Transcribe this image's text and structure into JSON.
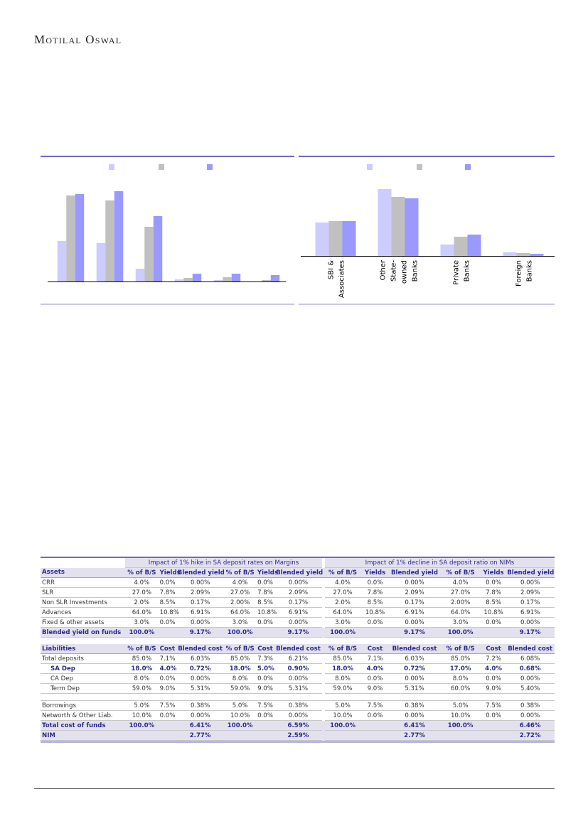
{
  "header": {
    "logo": "Motilal Oswal"
  },
  "chart_data": [
    {
      "type": "bar",
      "categories": [
        "",
        "",
        "",
        "",
        "",
        ""
      ],
      "series": [
        {
          "color": "#ccccff",
          "values": [
            57,
            54,
            18,
            3,
            2,
            0
          ]
        },
        {
          "color": "#c0c0c0",
          "values": [
            121,
            114,
            77,
            5,
            6,
            2
          ]
        },
        {
          "color": "#9999ff",
          "values": [
            123,
            127,
            92,
            11,
            11,
            9
          ]
        }
      ],
      "legend": "top",
      "grid": false
    },
    {
      "type": "bar",
      "categories": [
        "SBI & Associates",
        "Other State-owned Banks",
        "Private Banks",
        "Foreign Banks"
      ],
      "category_lines": [
        [
          "SBI &",
          "Associates"
        ],
        [
          "Other",
          "State-",
          "owned",
          "Banks"
        ],
        [
          "Private",
          "Banks"
        ],
        [
          "Foreign",
          "Banks"
        ]
      ],
      "series": [
        {
          "color": "#ccccff",
          "values": [
            47,
            94,
            16,
            5
          ]
        },
        {
          "color": "#c0c0c0",
          "values": [
            49,
            83,
            27,
            4
          ]
        },
        {
          "color": "#9999ff",
          "values": [
            49,
            81,
            30,
            3
          ]
        }
      ],
      "legend": "top",
      "grid": false
    }
  ],
  "table": {
    "titles": [
      "Impact of 1% hike in SA deposit rates on Margins",
      "Impact of 1% decline in SA deposit ratio on NIMs"
    ],
    "assets_header": [
      "Assets",
      "% of B/S",
      "Yields",
      "Blended yield",
      "% of B/S",
      "Yields",
      "Blended yield",
      "% of B/S",
      "Yields",
      "Blended yield",
      "% of B/S",
      "Yields",
      "Blended yield"
    ],
    "assets_rows": [
      [
        "CRR",
        "4.0%",
        "0.0%",
        "0.00%",
        "4.0%",
        "0.0%",
        "0.00%",
        "4.0%",
        "0.0%",
        "0.00%",
        "4.0%",
        "0.0%",
        "0.00%"
      ],
      [
        "SLR",
        "27.0%",
        "7.8%",
        "2.09%",
        "27.0%",
        "7.8%",
        "2.09%",
        "27.0%",
        "7.8%",
        "2.09%",
        "27.0%",
        "7.8%",
        "2.09%"
      ],
      [
        "Non SLR Investments",
        "2.0%",
        "8.5%",
        "0.17%",
        "2.00%",
        "8.5%",
        "0.17%",
        "2.0%",
        "8.5%",
        "0.17%",
        "2.00%",
        "8.5%",
        "0.17%"
      ],
      [
        "Advances",
        "64.0%",
        "10.8%",
        "6.91%",
        "64.0%",
        "10.8%",
        "6.91%",
        "64.0%",
        "10.8%",
        "6.91%",
        "64.0%",
        "10.8%",
        "6.91%"
      ],
      [
        "Fixed & other assets",
        "3.0%",
        "0.0%",
        "0.00%",
        "3.0%",
        "0.0%",
        "0.00%",
        "3.0%",
        "0.0%",
        "0.00%",
        "3.0%",
        "0.0%",
        "0.00%"
      ]
    ],
    "assets_total": [
      "Blended yield on funds",
      "100.0%",
      "",
      "9.17%",
      "100.0%",
      "",
      "9.17%",
      "100.0%",
      "",
      "9.17%",
      "100.0%",
      "",
      "9.17%"
    ],
    "liab_header": [
      "Liabilities",
      "% of B/S",
      "Cost",
      "Blended cost",
      "% of B/S",
      "Cost",
      "Blended cost",
      "% of B/S",
      "Cost",
      "Blended cost",
      "% of B/S",
      "Cost",
      "Blended cost"
    ],
    "liab_rows": [
      [
        "Total deposits",
        "85.0%",
        "7.1%",
        "6.03%",
        "85.0%",
        "7.3%",
        "6.21%",
        "85.0%",
        "7.1%",
        "6.03%",
        "85.0%",
        "7.2%",
        "6.08%"
      ],
      [
        "SA Dep",
        "18.0%",
        "4.0%",
        "0.72%",
        "18.0%",
        "5.0%",
        "0.90%",
        "18.0%",
        "4.0%",
        "0.72%",
        "17.0%",
        "4.0%",
        "0.68%"
      ],
      [
        "CA Dep",
        "8.0%",
        "0.0%",
        "0.00%",
        "8.0%",
        "0.0%",
        "0.00%",
        "8.0%",
        "0.0%",
        "0.00%",
        "8.0%",
        "0.0%",
        "0.00%"
      ],
      [
        "Term Dep",
        "59.0%",
        "9.0%",
        "5.31%",
        "59.0%",
        "9.0%",
        "5.31%",
        "59.0%",
        "9.0%",
        "5.31%",
        "60.0%",
        "9.0%",
        "5.40%"
      ],
      null,
      [
        "Borrowings",
        "5.0%",
        "7.5%",
        "0.38%",
        "5.0%",
        "7.5%",
        "0.38%",
        "5.0%",
        "7.5%",
        "0.38%",
        "5.0%",
        "7.5%",
        "0.38%"
      ],
      [
        "Networth & Other Liab.",
        "10.0%",
        "0.0%",
        "0.00%",
        "10.0%",
        "0.0%",
        "0.00%",
        "10.0%",
        "0.0%",
        "0.00%",
        "10.0%",
        "0.0%",
        "0.00%"
      ]
    ],
    "liab_totals": [
      [
        "Total cost of funds",
        "100.0%",
        "",
        "6.41%",
        "100.0%",
        "",
        "6.59%",
        "100.0%",
        "",
        "6.41%",
        "100.0%",
        "",
        "6.46%"
      ],
      [
        "NIM",
        "",
        "",
        "2.77%",
        "",
        "",
        "2.59%",
        "",
        "",
        "2.77%",
        "",
        "",
        "2.72%"
      ]
    ]
  }
}
